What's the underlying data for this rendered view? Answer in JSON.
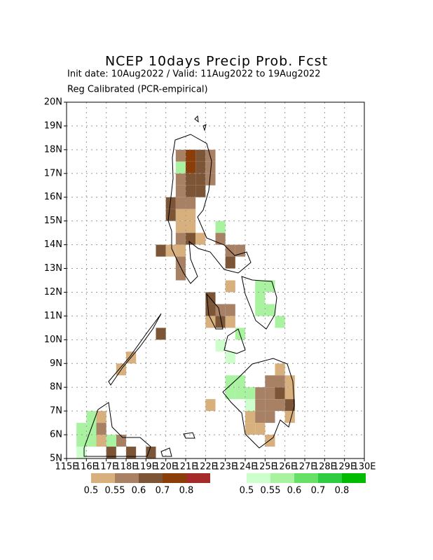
{
  "chart_data": {
    "type": "grid_map",
    "title": "NCEP 10days Precip Prob. Fcst",
    "subtitle": "Init date: 10Aug2022 / Valid: 11Aug2022 to 19Aug2022",
    "note": "Reg Calibrated (PCR-empirical)",
    "xlim": [
      115,
      130
    ],
    "ylim": [
      5,
      20
    ],
    "grid": true,
    "xticks": [
      {
        "value": 115,
        "label": "115E"
      },
      {
        "value": 116,
        "label": "116E"
      },
      {
        "value": 117,
        "label": "117E"
      },
      {
        "value": 118,
        "label": "118E"
      },
      {
        "value": 119,
        "label": "119E"
      },
      {
        "value": 120,
        "label": "120E"
      },
      {
        "value": 121,
        "label": "121E"
      },
      {
        "value": 122,
        "label": "122E"
      },
      {
        "value": 123,
        "label": "123E"
      },
      {
        "value": 124,
        "label": "124E"
      },
      {
        "value": 125,
        "label": "125E"
      },
      {
        "value": 126,
        "label": "126E"
      },
      {
        "value": 127,
        "label": "127E"
      },
      {
        "value": 128,
        "label": "128E"
      },
      {
        "value": 129,
        "label": "129E"
      },
      {
        "value": 130,
        "label": "130E"
      }
    ],
    "yticks": [
      {
        "value": 5,
        "label": "5N"
      },
      {
        "value": 6,
        "label": "6N"
      },
      {
        "value": 7,
        "label": "7N"
      },
      {
        "value": 8,
        "label": "8N"
      },
      {
        "value": 9,
        "label": "9N"
      },
      {
        "value": 10,
        "label": "10N"
      },
      {
        "value": 11,
        "label": "11N"
      },
      {
        "value": 12,
        "label": "12N"
      },
      {
        "value": 13,
        "label": "13N"
      },
      {
        "value": 14,
        "label": "14N"
      },
      {
        "value": 15,
        "label": "15N"
      },
      {
        "value": 16,
        "label": "16N"
      },
      {
        "value": 17,
        "label": "17N"
      },
      {
        "value": 18,
        "label": "18N"
      },
      {
        "value": 19,
        "label": "19N"
      },
      {
        "value": 20,
        "label": "20N"
      }
    ],
    "levels": [
      0.5,
      0.55,
      0.6,
      0.7,
      0.8
    ],
    "dry_colors": [
      "#d8b07e",
      "#a88064",
      "#7c5536",
      "#8b3d0a",
      "#a52a2a"
    ],
    "wet_colors": [
      "#ccffcc",
      "#a8f2a0",
      "#66e066",
      "#2ecc40",
      "#00bb00"
    ],
    "dry_cells": [
      [
        120.5,
        17.5,
        0.55
      ],
      [
        121,
        17.5,
        0.7
      ],
      [
        121.5,
        17.5,
        0.6
      ],
      [
        122,
        17.5,
        0.55
      ],
      [
        121,
        17,
        0.7
      ],
      [
        121.5,
        17,
        0.6
      ],
      [
        122,
        17,
        0.55
      ],
      [
        120.5,
        16.5,
        0.55
      ],
      [
        121,
        16.5,
        0.6
      ],
      [
        121.5,
        16.5,
        0.6
      ],
      [
        122,
        16.5,
        0.55
      ],
      [
        120.5,
        16,
        0.55
      ],
      [
        121,
        16,
        0.6
      ],
      [
        121.5,
        16,
        0.6
      ],
      [
        120,
        15.5,
        0.6
      ],
      [
        120.5,
        15.5,
        0.55
      ],
      [
        121,
        15.5,
        0.55
      ],
      [
        120,
        15,
        0.6
      ],
      [
        120.5,
        15,
        0.5
      ],
      [
        121,
        15,
        0.5
      ],
      [
        120.5,
        14.5,
        0.5
      ],
      [
        121,
        14.5,
        0.5
      ],
      [
        120.5,
        14,
        0.55
      ],
      [
        121,
        14,
        0.6
      ],
      [
        121.5,
        14,
        0.5
      ],
      [
        122.5,
        14,
        0.55
      ],
      [
        119.5,
        13.5,
        0.6
      ],
      [
        120,
        13.5,
        0.5
      ],
      [
        120.5,
        13.5,
        0.5
      ],
      [
        123,
        13.5,
        0.55
      ],
      [
        123.5,
        13.5,
        0.55
      ],
      [
        120.5,
        13,
        0.55
      ],
      [
        123,
        13,
        0.6
      ],
      [
        120.5,
        12.5,
        0.55
      ],
      [
        123,
        12,
        0.5
      ],
      [
        122,
        11,
        0.6
      ],
      [
        122,
        11.5,
        0.6
      ],
      [
        122.5,
        11,
        0.55
      ],
      [
        123,
        11,
        0.55
      ],
      [
        122,
        10.5,
        0.5
      ],
      [
        122.5,
        10.5,
        0.6
      ],
      [
        123,
        10.5,
        0.5
      ],
      [
        119.5,
        10,
        0.6
      ],
      [
        118,
        9,
        0.5
      ],
      [
        117.5,
        8.5,
        0.5
      ],
      [
        125.5,
        8.5,
        0.5
      ],
      [
        125,
        8,
        0.55
      ],
      [
        125.5,
        8,
        0.55
      ],
      [
        126,
        8,
        0.5
      ],
      [
        124.5,
        7.5,
        0.55
      ],
      [
        125,
        7.5,
        0.55
      ],
      [
        125.5,
        7.5,
        0.6
      ],
      [
        126,
        7.5,
        0.5
      ],
      [
        122,
        7,
        0.5
      ],
      [
        124.5,
        7,
        0.55
      ],
      [
        125,
        7,
        0.55
      ],
      [
        125.5,
        7,
        0.55
      ],
      [
        126,
        7,
        0.6
      ],
      [
        124,
        6.5,
        0.5
      ],
      [
        124.5,
        6.5,
        0.55
      ],
      [
        125,
        6.5,
        0.55
      ],
      [
        126,
        6.5,
        0.5
      ],
      [
        124,
        6,
        0.5
      ],
      [
        124.5,
        6,
        0.5
      ],
      [
        125,
        5.5,
        0.5
      ],
      [
        116.5,
        6.5,
        0.5
      ],
      [
        116.5,
        6,
        0.55
      ],
      [
        116.5,
        5.5,
        0.5
      ],
      [
        117.5,
        5.5,
        0.55
      ],
      [
        118,
        5,
        0.6
      ],
      [
        117,
        5,
        0.6
      ],
      [
        119,
        5,
        0.6
      ]
    ],
    "wet_cells": [
      [
        120.5,
        17,
        0.55
      ],
      [
        122.5,
        14.5,
        0.55
      ],
      [
        124.5,
        12,
        0.55
      ],
      [
        125,
        12,
        0.55
      ],
      [
        124.5,
        11.5,
        0.55
      ],
      [
        124.5,
        11,
        0.55
      ],
      [
        125,
        11,
        0.55
      ],
      [
        125.5,
        10.5,
        0.55
      ],
      [
        123.5,
        10,
        0.55
      ],
      [
        122.5,
        9.5,
        0.5
      ],
      [
        123,
        9,
        0.5
      ],
      [
        123,
        8,
        0.55
      ],
      [
        123.5,
        8,
        0.55
      ],
      [
        123,
        7.5,
        0.55
      ],
      [
        123.5,
        7.5,
        0.55
      ],
      [
        124,
        7.5,
        0.55
      ],
      [
        124,
        7,
        0.5
      ],
      [
        116,
        6.5,
        0.55
      ],
      [
        115.5,
        6,
        0.55
      ],
      [
        116,
        6,
        0.55
      ],
      [
        115.5,
        5.5,
        0.55
      ],
      [
        116,
        5.5,
        0.55
      ],
      [
        117,
        5.5,
        0.55
      ],
      [
        115.5,
        5,
        0.5
      ]
    ]
  }
}
